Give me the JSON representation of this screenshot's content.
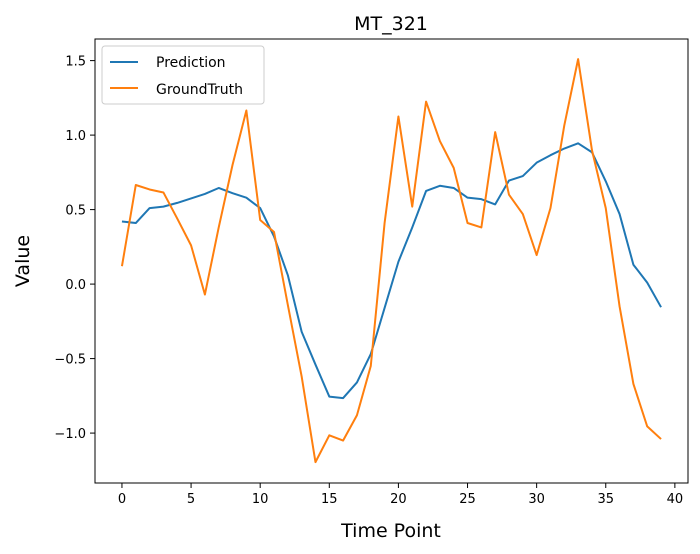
{
  "chart_data": {
    "type": "line",
    "title": "MT_321",
    "xlabel": "Time Point",
    "ylabel": "Value",
    "xlim": [
      -1.95,
      40.95
    ],
    "ylim": [
      -1.335,
      1.645
    ],
    "xticks": [
      0,
      5,
      10,
      15,
      20,
      25,
      30,
      35,
      40
    ],
    "yticks": [
      -1.0,
      -0.5,
      0.0,
      0.5,
      1.0,
      1.5
    ],
    "grid": false,
    "legend_position": "upper-left",
    "x": [
      0,
      1,
      2,
      3,
      4,
      5,
      6,
      7,
      8,
      9,
      10,
      11,
      12,
      13,
      14,
      15,
      16,
      17,
      18,
      19,
      20,
      21,
      22,
      23,
      24,
      25,
      26,
      27,
      28,
      29,
      30,
      31,
      32,
      33,
      34,
      35,
      36,
      37,
      38,
      39
    ],
    "series": [
      {
        "name": "Prediction",
        "color": "#1f77b4",
        "values": [
          0.42,
          0.41,
          0.51,
          0.52,
          0.545,
          0.575,
          0.605,
          0.645,
          0.61,
          0.58,
          0.51,
          0.32,
          0.06,
          -0.32,
          -0.54,
          -0.755,
          -0.765,
          -0.66,
          -0.47,
          -0.16,
          0.15,
          0.38,
          0.625,
          0.66,
          0.645,
          0.58,
          0.57,
          0.535,
          0.695,
          0.725,
          0.815,
          0.865,
          0.91,
          0.945,
          0.885,
          0.69,
          0.47,
          0.13,
          0.01,
          -0.155
        ]
      },
      {
        "name": "GroundTruth",
        "color": "#ff7f0e",
        "values": [
          0.12,
          0.665,
          0.635,
          0.615,
          0.44,
          0.26,
          -0.07,
          0.38,
          0.8,
          1.165,
          0.43,
          0.35,
          -0.14,
          -0.62,
          -1.195,
          -1.015,
          -1.05,
          -0.88,
          -0.55,
          0.41,
          1.125,
          0.52,
          1.225,
          0.96,
          0.78,
          0.41,
          0.38,
          1.02,
          0.6,
          0.47,
          0.195,
          0.51,
          1.065,
          1.51,
          0.9,
          0.51,
          -0.15,
          -0.67,
          -0.955,
          -1.04
        ]
      }
    ]
  }
}
